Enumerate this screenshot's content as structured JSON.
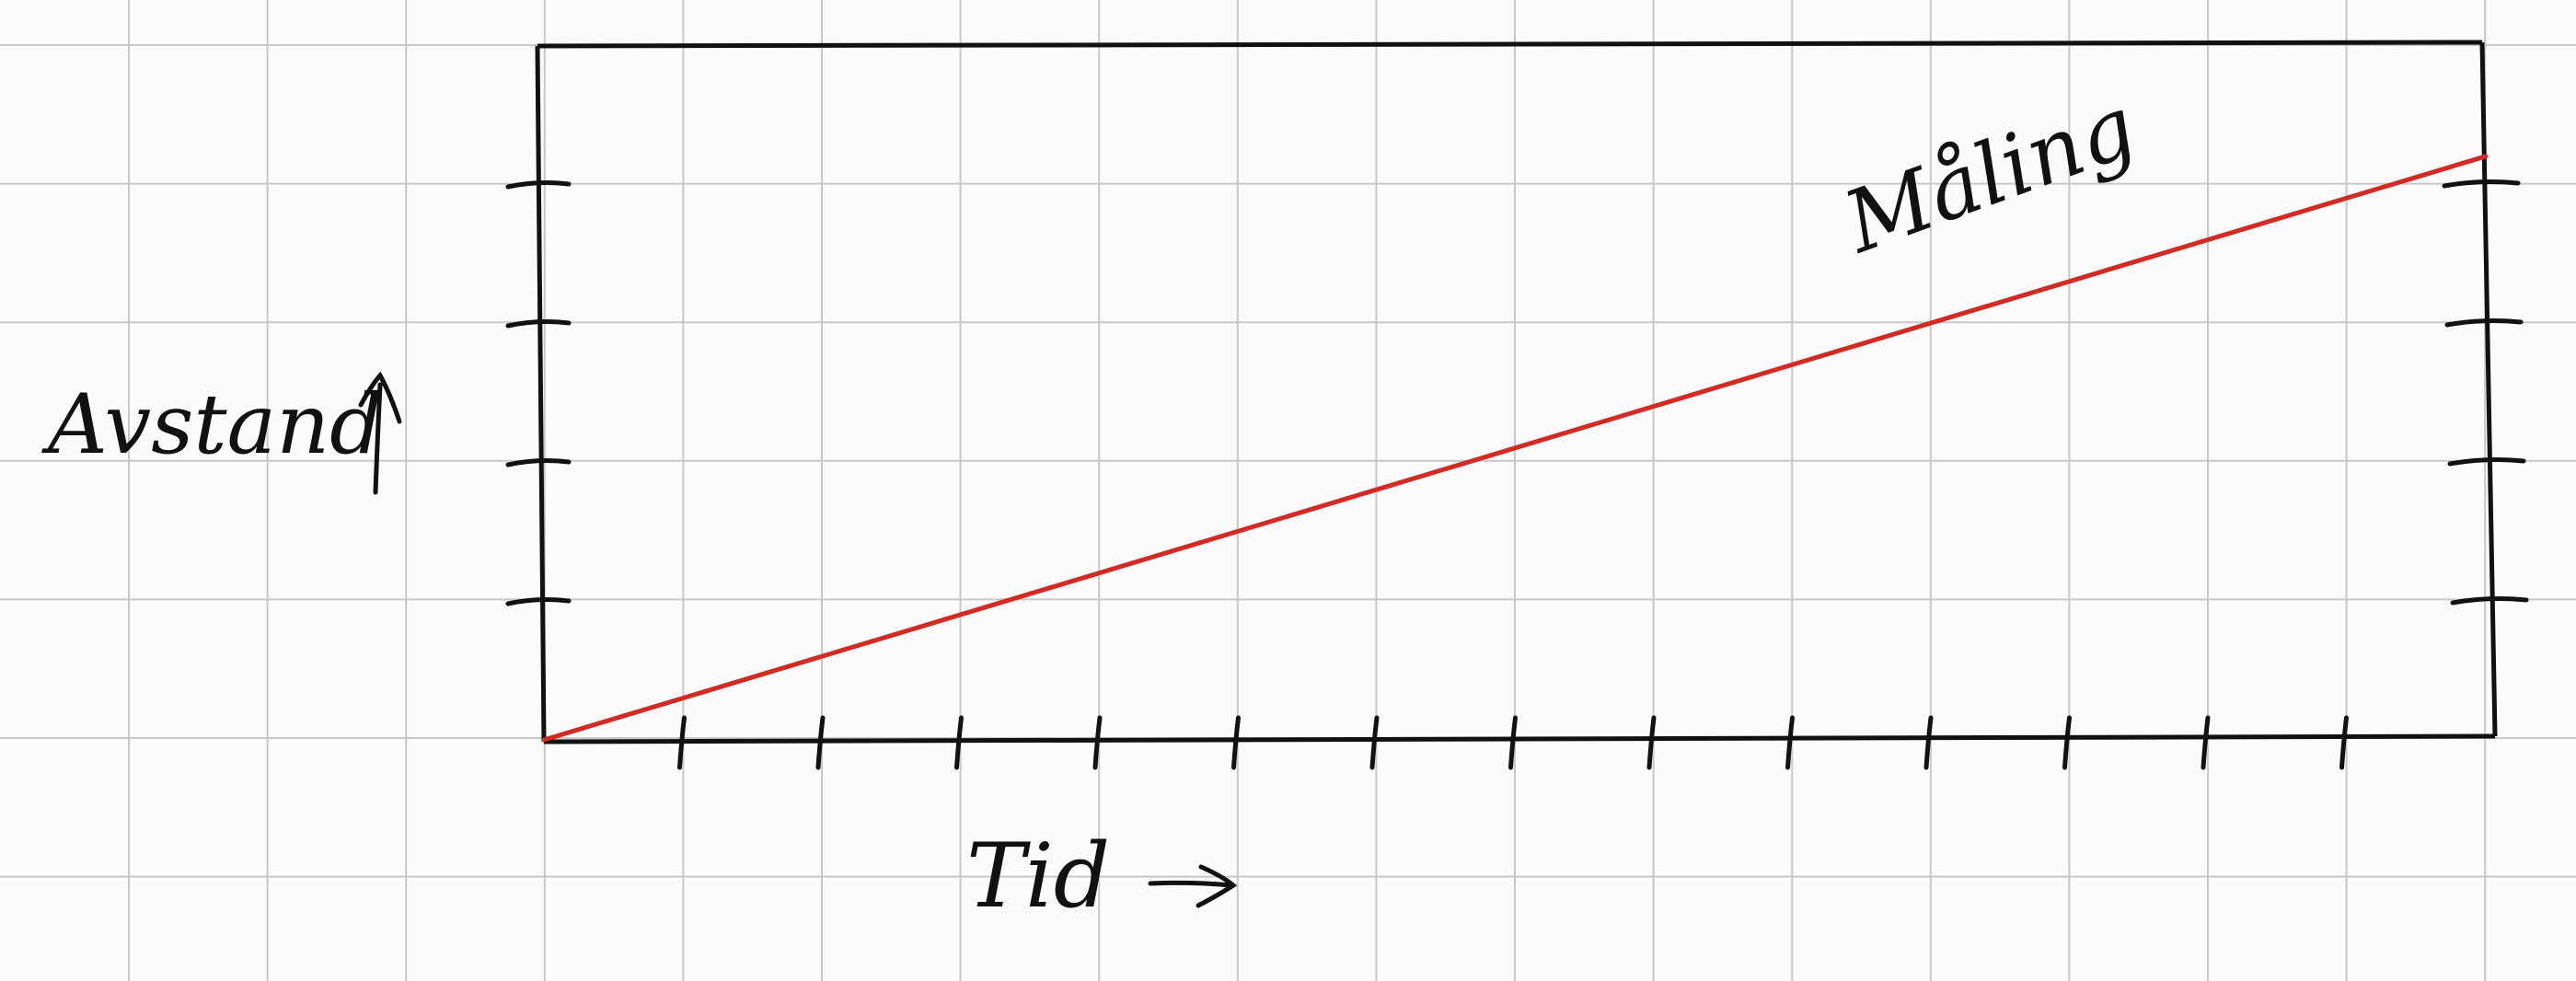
{
  "chart_data": {
    "type": "line",
    "title": "",
    "xlabel": "Tid",
    "ylabel": "Avstand",
    "x_tick_count": 13,
    "y_tick_count": 4,
    "xlim": [
      0,
      13
    ],
    "ylim": [
      0,
      5
    ],
    "grid": true,
    "series": [
      {
        "name": "Måling",
        "color": "#d42a24",
        "x": [
          0,
          13
        ],
        "y": [
          0,
          4.2
        ]
      }
    ]
  },
  "style": {
    "background": "#fbfbfb",
    "grid_color": "#c8c8c8",
    "ink_color": "#111111",
    "series_color": "#d42a24"
  },
  "icons": {
    "y_arrow": "arrow-up-icon",
    "x_arrow": "arrow-right-icon"
  }
}
